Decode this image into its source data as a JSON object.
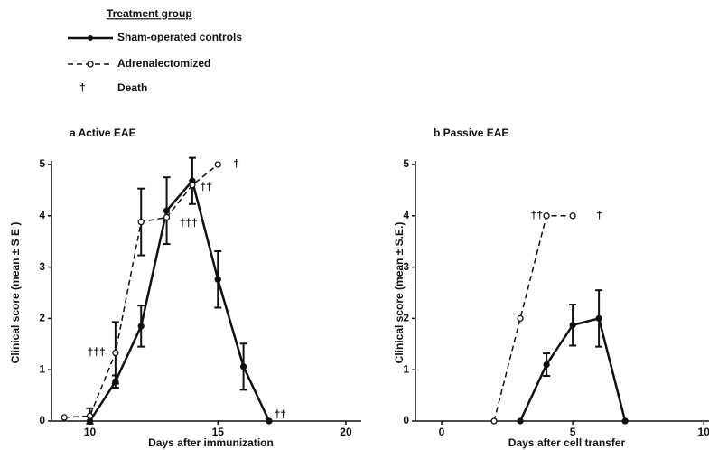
{
  "legend": {
    "title": "Treatment group",
    "death_symbol": "†",
    "death": "Death"
  },
  "chart_data": [
    {
      "type": "line",
      "title": "a Active EAE",
      "xlabel": "Days after immunization",
      "ylabel": "Clinical score (mean ± S E )",
      "x": [
        9,
        10,
        11,
        12,
        13,
        14,
        15,
        16,
        17
      ],
      "xlim": [
        8.5,
        20.6
      ],
      "ylim": [
        0,
        5
      ],
      "xticks": [
        10,
        15,
        20
      ],
      "yticks": [
        0,
        1,
        2,
        3,
        4,
        5
      ],
      "series": [
        {
          "name": "Sham-operated controls",
          "color": "#111111",
          "dashed": false,
          "filled": true,
          "values": [
            null,
            0,
            0.77,
            1.85,
            4.1,
            4.68,
            2.76,
            1.06,
            0
          ],
          "errors": [
            null,
            null,
            0.12,
            0.4,
            0.65,
            0.45,
            0.55,
            0.45,
            null
          ]
        },
        {
          "name": "Adrenalectomized",
          "color": "#111111",
          "dashed": true,
          "filled": false,
          "values": [
            0.07,
            0.1,
            1.33,
            3.88,
            3.97,
            4.6,
            5,
            null,
            null
          ],
          "errors": [
            null,
            0.15,
            0.6,
            0.65,
            null,
            null,
            null,
            null,
            null
          ]
        }
      ],
      "annotations": [
        {
          "text": "†",
          "x": 15.6,
          "y": 5
        },
        {
          "text": "††",
          "x": 14.3,
          "y": 4.55
        },
        {
          "text": "†††",
          "x": 13.5,
          "y": 3.85
        },
        {
          "text": "†††",
          "x": 9.9,
          "y": 1.33
        },
        {
          "text": "††",
          "x": 17.2,
          "y": 0.12
        }
      ]
    },
    {
      "type": "line",
      "title": "b Passive EAE",
      "xlabel": "Days after cell transfer",
      "ylabel": "Clinical score (mean ± S.E.)",
      "x": [
        2,
        3,
        4,
        5,
        6,
        7
      ],
      "xlim": [
        -1,
        10.2
      ],
      "ylim": [
        0,
        5
      ],
      "xticks": [
        0,
        5,
        10
      ],
      "yticks": [
        0,
        1,
        2,
        3,
        4,
        5
      ],
      "series": [
        {
          "name": "Sham-operated controls",
          "color": "#111111",
          "dashed": false,
          "filled": true,
          "values": [
            null,
            0,
            1.1,
            1.87,
            2.0,
            0
          ],
          "errors": [
            null,
            null,
            0.22,
            0.4,
            0.55,
            null
          ]
        },
        {
          "name": "Adrenalectomized",
          "color": "#111111",
          "dashed": true,
          "filled": false,
          "values": [
            0,
            2,
            4,
            4,
            null,
            null
          ],
          "errors": [
            null,
            null,
            null,
            null,
            null,
            null
          ]
        }
      ],
      "annotations": [
        {
          "text": "††",
          "x": 3.4,
          "y": 4.0
        },
        {
          "text": "†",
          "x": 5.9,
          "y": 4.0
        }
      ]
    }
  ]
}
